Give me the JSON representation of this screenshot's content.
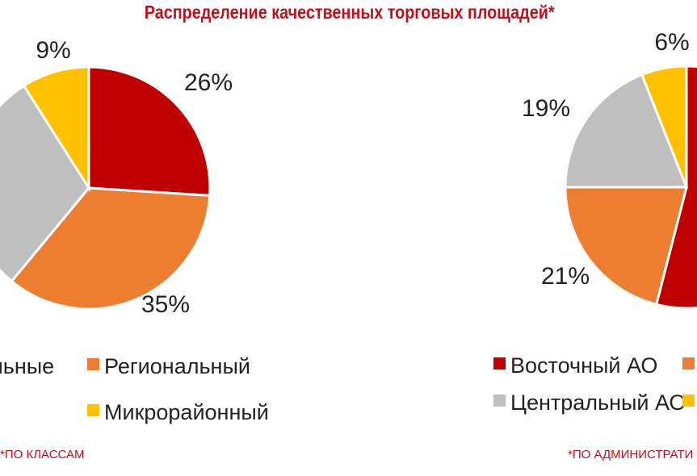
{
  "title": "Распределение качественных торговых площадей*",
  "colors": {
    "title": "#c0101a",
    "red": "#c00000",
    "orange": "#ed7d31",
    "gray": "#bfbfbf",
    "yellow": "#ffc000"
  },
  "chart_data": [
    {
      "type": "pie",
      "footnote": "*ПО КЛАССАМ",
      "slices": [
        {
          "value": 26,
          "label": "26%",
          "color": "#c00000"
        },
        {
          "value": 35,
          "label": "35%",
          "color": "#ed7d31"
        },
        {
          "value": 30,
          "label": "",
          "color": "#bfbfbf"
        },
        {
          "value": 9,
          "label": "9%",
          "color": "#ffc000"
        }
      ],
      "legend": [
        {
          "label": "альные",
          "color": "#bfbfbf"
        },
        {
          "label": "Региональный",
          "color": "#ed7d31"
        },
        {
          "label": "Микрорайонный",
          "color": "#ffc000"
        }
      ]
    },
    {
      "type": "pie",
      "footnote": "*ПО АДМИНИСТРАТИ",
      "slices": [
        {
          "value": 54,
          "label": "",
          "color": "#c00000"
        },
        {
          "value": 21,
          "label": "21%",
          "color": "#ed7d31"
        },
        {
          "value": 19,
          "label": "19%",
          "color": "#bfbfbf"
        },
        {
          "value": 6,
          "label": "6%",
          "color": "#ffc000"
        }
      ],
      "legend": [
        {
          "label": "Восточный АО",
          "color": "#c00000"
        },
        {
          "label": "",
          "color": "#ed7d31"
        },
        {
          "label": "Центральный АО",
          "color": "#bfbfbf"
        },
        {
          "label": "",
          "color": "#ffc000"
        }
      ]
    }
  ]
}
